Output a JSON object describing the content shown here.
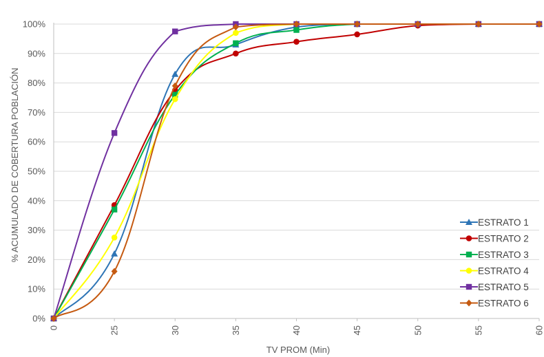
{
  "chart_data": {
    "type": "line",
    "title": "",
    "xlabel": "TV PROM (Min)",
    "ylabel": "% ACUMULADO DE COBERTURA POBLACIÓN",
    "x": [
      0,
      25,
      30,
      35,
      40,
      45,
      50,
      55,
      60
    ],
    "x_tick_labels": [
      "0",
      "25",
      "30",
      "35",
      "40",
      "45",
      "50",
      "55",
      "60"
    ],
    "y_tick_labels": [
      "0%",
      "10%",
      "20%",
      "30%",
      "40%",
      "50%",
      "60%",
      "70%",
      "80%",
      "90%",
      "100%"
    ],
    "ylim": [
      0,
      100
    ],
    "y_unit": "%",
    "grid": "horizontal",
    "legend_position": "bottom-right",
    "series": [
      {
        "name": "ESTRATO 1",
        "color": "#2e75b6",
        "marker": "triangle",
        "values": [
          0,
          22,
          83,
          93,
          99,
          100,
          100,
          100,
          100
        ]
      },
      {
        "name": "ESTRATO 2",
        "color": "#c00000",
        "marker": "circle",
        "values": [
          0,
          38.5,
          77.5,
          90,
          94,
          96.5,
          99.5,
          100,
          100
        ]
      },
      {
        "name": "ESTRATO 3",
        "color": "#00b050",
        "marker": "square",
        "values": [
          0,
          37,
          76,
          93.5,
          98,
          100,
          100,
          100,
          100
        ]
      },
      {
        "name": "ESTRATO 4",
        "color": "#ffff00",
        "marker": "circle",
        "values": [
          0,
          27.5,
          74.5,
          97,
          100,
          100,
          100,
          100,
          100
        ]
      },
      {
        "name": "ESTRATO 5",
        "color": "#7030a0",
        "marker": "square",
        "values": [
          0,
          63,
          97.5,
          100,
          100,
          100,
          100,
          100,
          100
        ]
      },
      {
        "name": "ESTRATO 6",
        "color": "#c55a11",
        "marker": "diamond",
        "values": [
          0,
          16,
          79,
          99,
          100,
          100,
          100,
          100,
          100
        ]
      }
    ]
  }
}
